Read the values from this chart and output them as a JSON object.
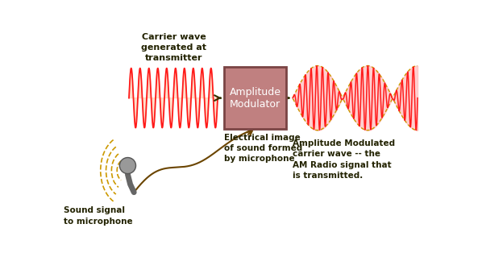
{
  "bg_color": "#ffffff",
  "carrier_wave_color": "#ff1a1a",
  "carrier_fill_color": "#ffccaa",
  "am_wave_color": "#ff1a1a",
  "envelope_fill_color": "#ffbbbb",
  "envelope_line_color": "#cc9900",
  "box_face_color": "#c08080",
  "box_edge_color": "#7a4444",
  "arrow_color": "#333300",
  "text_color": "#222200",
  "label_color": "#aa7700",
  "mic_color": "#888888",
  "mic_handle_color": "#666666",
  "carrier_label": "Carrier wave\ngenerated at\ntransmitter",
  "box_label": "Amplitude\nModulator",
  "am_label": "Amplitude Modulated\ncarrier wave -- the\nAM Radio signal that\nis transmitted.",
  "electrical_label": "Electrical image\nof sound formed\nby microphone",
  "sound_label": "Sound signal\nto microphone"
}
